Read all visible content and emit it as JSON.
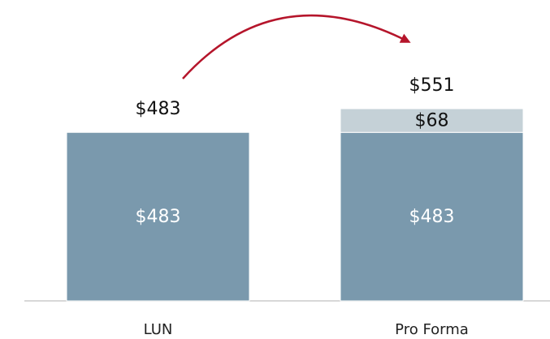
{
  "chart_data": {
    "type": "stacked-bar",
    "categories": [
      "LUN",
      "Pro Forma"
    ],
    "series": [
      {
        "color": "#7a99ad",
        "values": [
          483,
          483
        ],
        "value_labels": [
          "$483",
          "$483"
        ]
      },
      {
        "color": "#c5d1d7",
        "values": [
          null,
          68
        ],
        "value_labels": [
          null,
          "$68"
        ]
      }
    ],
    "totals": [
      483,
      551
    ],
    "total_labels": [
      "$483",
      "$551"
    ]
  }
}
